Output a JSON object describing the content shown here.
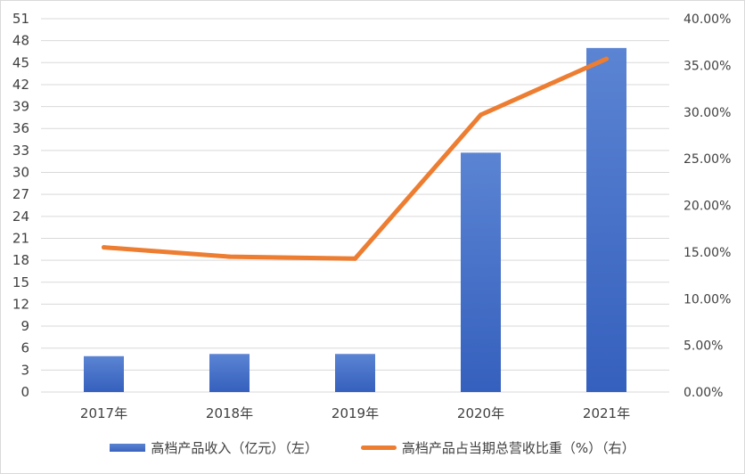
{
  "chart_data": {
    "type": "bar+line",
    "categories": [
      "2017年",
      "2018年",
      "2019年",
      "2020年",
      "2021年"
    ],
    "series": [
      {
        "name": "高档产品收入（亿元）（左）",
        "type": "bar",
        "axis": "left",
        "color": "#4472c4",
        "values": [
          4.9,
          5.2,
          5.2,
          32.7,
          47.0
        ]
      },
      {
        "name": "高档产品占当期总营收比重（%）（右）",
        "type": "line",
        "axis": "right",
        "color": "#ed7d31",
        "values": [
          15.5,
          14.5,
          14.3,
          29.7,
          35.7
        ]
      }
    ],
    "y_left": {
      "min": 0,
      "max": 51,
      "step": 3
    },
    "y_right": {
      "min": 0,
      "max": 40,
      "step": 5,
      "format": "percent"
    },
    "grid": true,
    "legend_position": "bottom"
  }
}
